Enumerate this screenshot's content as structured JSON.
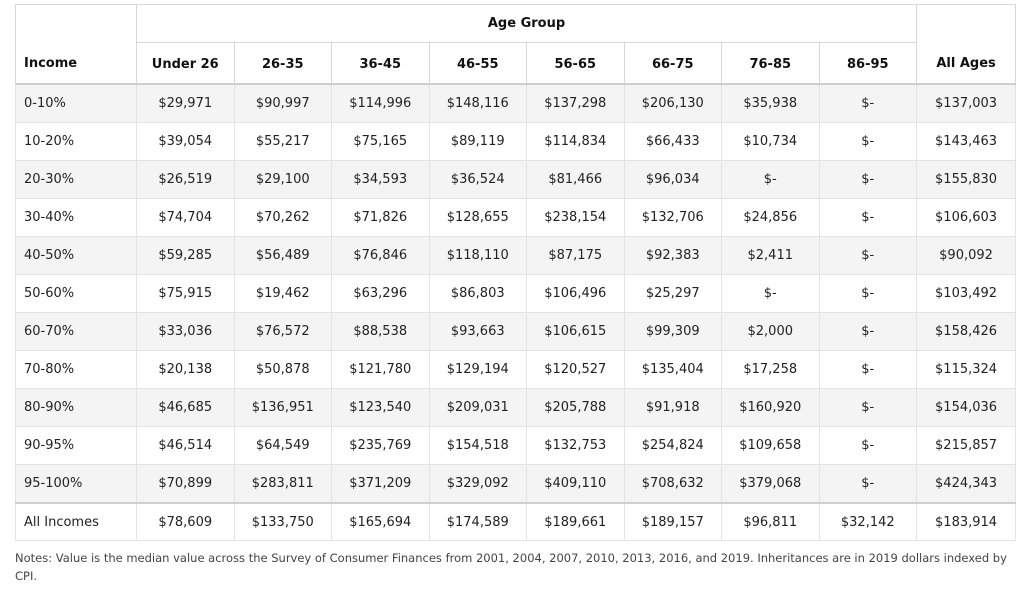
{
  "table": {
    "group_header": "Age Group",
    "row_header": "Income",
    "age_columns": [
      "Under 26",
      "26-35",
      "36-45",
      "46-55",
      "56-65",
      "66-75",
      "76-85",
      "86-95"
    ],
    "all_header": "All Ages",
    "rows": [
      {
        "label": "0-10%",
        "cells": [
          "$29,971",
          "$90,997",
          "$114,996",
          "$148,116",
          "$137,298",
          "$206,130",
          "$35,938",
          "$-"
        ],
        "all": "$137,003"
      },
      {
        "label": "10-20%",
        "cells": [
          "$39,054",
          "$55,217",
          "$75,165",
          "$89,119",
          "$114,834",
          "$66,433",
          "$10,734",
          "$-"
        ],
        "all": "$143,463"
      },
      {
        "label": "20-30%",
        "cells": [
          "$26,519",
          "$29,100",
          "$34,593",
          "$36,524",
          "$81,466",
          "$96,034",
          "$-",
          "$-"
        ],
        "all": "$155,830"
      },
      {
        "label": "30-40%",
        "cells": [
          "$74,704",
          "$70,262",
          "$71,826",
          "$128,655",
          "$238,154",
          "$132,706",
          "$24,856",
          "$-"
        ],
        "all": "$106,603"
      },
      {
        "label": "40-50%",
        "cells": [
          "$59,285",
          "$56,489",
          "$76,846",
          "$118,110",
          "$87,175",
          "$92,383",
          "$2,411",
          "$-"
        ],
        "all": "$90,092"
      },
      {
        "label": "50-60%",
        "cells": [
          "$75,915",
          "$19,462",
          "$63,296",
          "$86,803",
          "$106,496",
          "$25,297",
          "$-",
          "$-"
        ],
        "all": "$103,492"
      },
      {
        "label": "60-70%",
        "cells": [
          "$33,036",
          "$76,572",
          "$88,538",
          "$93,663",
          "$106,615",
          "$99,309",
          "$2,000",
          "$-"
        ],
        "all": "$158,426"
      },
      {
        "label": "70-80%",
        "cells": [
          "$20,138",
          "$50,878",
          "$121,780",
          "$129,194",
          "$120,527",
          "$135,404",
          "$17,258",
          "$-"
        ],
        "all": "$115,324"
      },
      {
        "label": "80-90%",
        "cells": [
          "$46,685",
          "$136,951",
          "$123,540",
          "$209,031",
          "$205,788",
          "$91,918",
          "$160,920",
          "$-"
        ],
        "all": "$154,036"
      },
      {
        "label": "90-95%",
        "cells": [
          "$46,514",
          "$64,549",
          "$235,769",
          "$154,518",
          "$132,753",
          "$254,824",
          "$109,658",
          "$-"
        ],
        "all": "$215,857"
      },
      {
        "label": "95-100%",
        "cells": [
          "$70,899",
          "$283,811",
          "$371,209",
          "$329,092",
          "$409,110",
          "$708,632",
          "$379,068",
          "$-"
        ],
        "all": "$424,343"
      }
    ],
    "total_row": {
      "label": "All Incomes",
      "cells": [
        "$78,609",
        "$133,750",
        "$165,694",
        "$174,589",
        "$189,661",
        "$189,157",
        "$96,811",
        "$32,142"
      ],
      "all": "$183,914"
    }
  },
  "notes": "Notes: Value is the median value across the Survey of Consumer Finances from 2001, 2004, 2007, 2010, 2013, 2016, and 2019. Inheritances are in 2019 dollars indexed by CPI."
}
